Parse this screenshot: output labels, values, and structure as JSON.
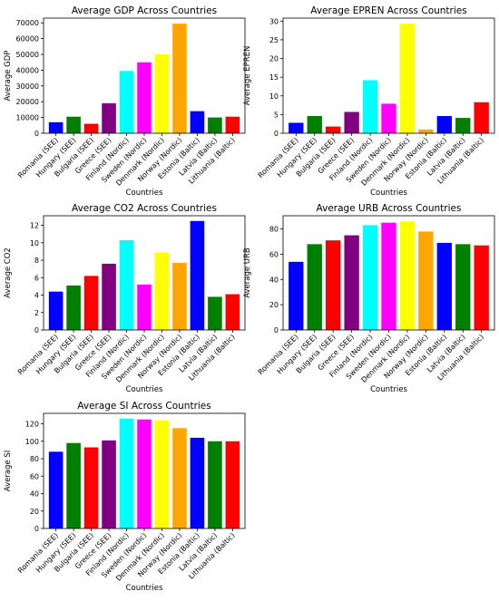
{
  "chart_data": [
    {
      "type": "bar",
      "title": "Average GDP Across Countries",
      "x_label": "Countries",
      "y_label": "Average GDP",
      "categories": [
        "Romania (SEE)",
        "Hungary (SEE)",
        "Bulgaria (SEE)",
        "Greece (SEE)",
        "Finland (Nordic)",
        "Sweden (Nordic)",
        "Denmark (Nordic)",
        "Norway (Nordic)",
        "Estonia (Baltic)",
        "Latvia (Baltic)",
        "Lithuania (Baltic)"
      ],
      "values": [
        7000,
        10500,
        6000,
        19000,
        39500,
        45000,
        50000,
        69500,
        14000,
        10000,
        10500
      ],
      "colors": [
        "blue",
        "green",
        "red",
        "purple",
        "cyan",
        "magenta",
        "yellow",
        "orange",
        "blue",
        "green",
        "red"
      ],
      "ylim": [
        0,
        73000
      ],
      "yticks": [
        0,
        10000,
        20000,
        30000,
        40000,
        50000,
        60000,
        70000
      ]
    },
    {
      "type": "bar",
      "title": "Average EPREN Across Countries",
      "x_label": "Countries",
      "y_label": "Average EPREN",
      "categories": [
        "Romania (SEE)",
        "Hungary (SEE)",
        "Bulgaria (SEE)",
        "Greece (SEE)",
        "Finland (Nordic)",
        "Sweden (Nordic)",
        "Denmark (Nordic)",
        "Norway (Nordic)",
        "Estonia (Baltic)",
        "Latvia (Baltic)",
        "Lithuania (Baltic)"
      ],
      "values": [
        2.8,
        4.6,
        1.8,
        5.7,
        14.2,
        7.9,
        29.3,
        1.0,
        4.6,
        4.1,
        8.3
      ],
      "colors": [
        "blue",
        "green",
        "red",
        "purple",
        "cyan",
        "magenta",
        "yellow",
        "orange",
        "blue",
        "green",
        "red"
      ],
      "ylim": [
        0,
        30.8
      ],
      "yticks": [
        0,
        5,
        10,
        15,
        20,
        25,
        30
      ]
    },
    {
      "type": "bar",
      "title": "Average CO2 Across Countries",
      "x_label": "Countries",
      "y_label": "Average CO2",
      "categories": [
        "Romania (SEE)",
        "Hungary (SEE)",
        "Bulgaria (SEE)",
        "Greece (SEE)",
        "Finland (Nordic)",
        "Sweden (Nordic)",
        "Denmark (Nordic)",
        "Norway (Nordic)",
        "Estonia (Baltic)",
        "Latvia (Baltic)",
        "Lithuania (Baltic)"
      ],
      "values": [
        4.4,
        5.1,
        6.2,
        7.6,
        10.3,
        5.2,
        8.9,
        7.7,
        12.5,
        3.8,
        4.1
      ],
      "colors": [
        "blue",
        "green",
        "red",
        "purple",
        "cyan",
        "magenta",
        "yellow",
        "orange",
        "blue",
        "green",
        "red"
      ],
      "ylim": [
        0,
        13.1
      ],
      "yticks": [
        0,
        2,
        4,
        6,
        8,
        10,
        12
      ]
    },
    {
      "type": "bar",
      "title": "Average URB Across Countries",
      "x_label": "Countries",
      "y_label": "Average URB",
      "categories": [
        "Romania (SEE)",
        "Hungary (SEE)",
        "Bulgaria (SEE)",
        "Greece (SEE)",
        "Finland (Nordic)",
        "Sweden (Nordic)",
        "Denmark (Nordic)",
        "Norway (Nordic)",
        "Estonia (Baltic)",
        "Latvia (Baltic)",
        "Lithuania (Baltic)"
      ],
      "values": [
        54,
        68,
        71,
        75,
        83,
        85,
        86,
        78,
        69,
        68,
        67
      ],
      "colors": [
        "blue",
        "green",
        "red",
        "purple",
        "cyan",
        "magenta",
        "yellow",
        "orange",
        "blue",
        "green",
        "red"
      ],
      "ylim": [
        0,
        90.5
      ],
      "yticks": [
        0,
        20,
        40,
        60,
        80
      ]
    },
    {
      "type": "bar",
      "title": "Average SI Across Countries",
      "x_label": "Countries",
      "y_label": "Average SI",
      "categories": [
        "Romania (SEE)",
        "Hungary (SEE)",
        "Bulgaria (SEE)",
        "Greece (SEE)",
        "Finland (Nordic)",
        "Sweden (Nordic)",
        "Denmark (Nordic)",
        "Norway (Nordic)",
        "Estonia (Baltic)",
        "Latvia (Baltic)",
        "Lithuania (Baltic)"
      ],
      "values": [
        88,
        98,
        93,
        101,
        126,
        125,
        124,
        115,
        104,
        100,
        100
      ],
      "colors": [
        "blue",
        "green",
        "red",
        "purple",
        "cyan",
        "magenta",
        "yellow",
        "orange",
        "blue",
        "green",
        "red"
      ],
      "ylim": [
        0,
        132
      ],
      "yticks": [
        0,
        20,
        40,
        60,
        80,
        100,
        120
      ]
    }
  ]
}
